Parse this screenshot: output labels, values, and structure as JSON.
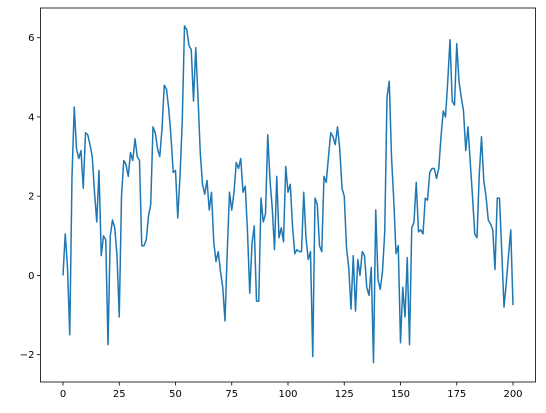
{
  "chart_data": {
    "type": "line",
    "x": [
      0,
      1,
      2,
      3,
      4,
      5,
      6,
      7,
      8,
      9,
      10,
      11,
      12,
      13,
      14,
      15,
      16,
      17,
      18,
      19,
      20,
      21,
      22,
      23,
      24,
      25,
      26,
      27,
      28,
      29,
      30,
      31,
      32,
      33,
      34,
      35,
      36,
      37,
      38,
      39,
      40,
      41,
      42,
      43,
      44,
      45,
      46,
      47,
      48,
      49,
      50,
      51,
      52,
      53,
      54,
      55,
      56,
      57,
      58,
      59,
      60,
      61,
      62,
      63,
      64,
      65,
      66,
      67,
      68,
      69,
      70,
      71,
      72,
      73,
      74,
      75,
      76,
      77,
      78,
      79,
      80,
      81,
      82,
      83,
      84,
      85,
      86,
      87,
      88,
      89,
      90,
      91,
      92,
      93,
      94,
      95,
      96,
      97,
      98,
      99,
      100,
      101,
      102,
      103,
      104,
      105,
      106,
      107,
      108,
      109,
      110,
      111,
      112,
      113,
      114,
      115,
      116,
      117,
      118,
      119,
      120,
      121,
      122,
      123,
      124,
      125,
      126,
      127,
      128,
      129,
      130,
      131,
      132,
      133,
      134,
      135,
      136,
      137,
      138,
      139,
      140,
      141,
      142,
      143,
      144,
      145,
      146,
      147,
      148,
      149,
      150,
      151,
      152,
      153,
      154,
      155,
      156,
      157,
      158,
      159,
      160,
      161,
      162,
      163,
      164,
      165,
      166,
      167,
      168,
      169,
      170,
      171,
      172,
      173,
      174,
      175,
      176,
      177,
      178,
      179,
      180,
      181,
      182,
      183,
      184,
      185,
      186,
      187,
      188,
      189,
      190,
      191,
      192,
      193,
      194,
      195,
      196,
      197,
      198,
      199,
      200
    ],
    "series": [
      {
        "color": "#1f77b4",
        "values": [
          0,
          1.05,
          0.2,
          -1.5,
          2.5,
          4.25,
          3.2,
          2.95,
          3.15,
          2.2,
          3.6,
          3.55,
          3.3,
          3.0,
          2.1,
          1.35,
          2.65,
          0.5,
          1.0,
          0.9,
          -1.75,
          1.0,
          1.4,
          1.2,
          0.5,
          -1.05,
          2.0,
          2.9,
          2.8,
          2.5,
          3.1,
          2.9,
          3.45,
          3.0,
          2.9,
          0.75,
          0.75,
          0.9,
          1.5,
          1.8,
          3.75,
          3.6,
          3.2,
          3.0,
          3.7,
          4.8,
          4.7,
          4.2,
          3.5,
          2.6,
          2.65,
          1.45,
          2.5,
          3.9,
          6.3,
          6.2,
          5.8,
          5.7,
          4.4,
          5.75,
          4.5,
          3.1,
          2.3,
          2.05,
          2.4,
          1.65,
          2.1,
          0.85,
          0.35,
          0.6,
          0.1,
          -0.3,
          -1.15,
          0.6,
          2.1,
          1.65,
          2.1,
          2.85,
          2.7,
          2.95,
          2.1,
          2.25,
          1.1,
          -0.45,
          0.8,
          1.25,
          -0.65,
          -0.65,
          1.95,
          1.35,
          1.55,
          3.55,
          2.4,
          1.7,
          0.65,
          2.5,
          0.95,
          1.2,
          0.85,
          2.75,
          2.1,
          2.3,
          1.25,
          0.55,
          0.65,
          0.6,
          0.6,
          2.1,
          0.95,
          0.4,
          0.6,
          -2.05,
          1.95,
          1.8,
          0.75,
          0.6,
          2.5,
          2.35,
          3.0,
          3.6,
          3.5,
          3.3,
          3.75,
          3.2,
          2.2,
          2.0,
          0.7,
          0.2,
          -0.85,
          0.5,
          -0.9,
          0.4,
          0.0,
          0.6,
          0.5,
          -0.3,
          -0.5,
          0.2,
          -2.2,
          1.65,
          -0.1,
          -0.35,
          0.1,
          1.1,
          4.5,
          4.9,
          3.0,
          1.9,
          0.55,
          0.75,
          -1.7,
          -0.3,
          -1.05,
          0.45,
          -1.75,
          1.2,
          1.35,
          2.35,
          1.1,
          1.15,
          1.05,
          1.95,
          1.9,
          2.6,
          2.7,
          2.7,
          2.45,
          2.7,
          3.5,
          4.15,
          4.0,
          4.9,
          5.95,
          4.4,
          4.3,
          5.85,
          4.9,
          4.5,
          4.15,
          3.15,
          3.75,
          2.85,
          2.0,
          1.05,
          0.95,
          2.55,
          3.5,
          2.4,
          2.0,
          1.4,
          1.3,
          1.15,
          0.15,
          1.95,
          1.95,
          0.6,
          -0.8,
          -0.2,
          0.5,
          1.15,
          -0.75
        ]
      }
    ],
    "xlim": [
      -10,
      210
    ],
    "ylim": [
      -2.69,
      6.75
    ],
    "xticks": [
      0,
      25,
      50,
      75,
      100,
      125,
      150,
      175,
      200
    ],
    "yticks": [
      {
        "value": -2,
        "label": "−2"
      },
      0,
      2,
      4,
      6
    ]
  }
}
